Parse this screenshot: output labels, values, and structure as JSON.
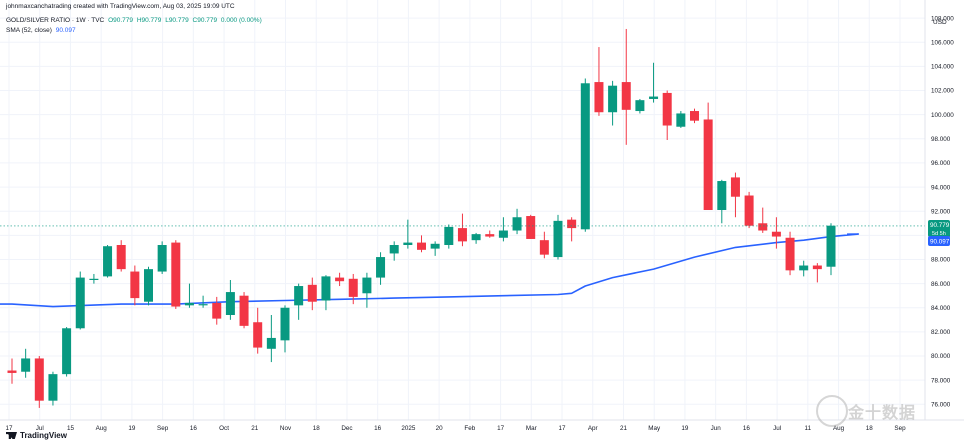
{
  "header": {
    "caption": "johnmaxcanchatrading created with TradingView.com, Aug 03, 2025 19:09 UTC",
    "symbol_line": "GOLD/SILVER RATIO · 1W · TVC",
    "ohlc": [
      "O90.779",
      "H90.779",
      "L90.779",
      "C90.779",
      "0.000 (0.00%)"
    ],
    "sma_label": "SMA (52, close)",
    "sma_value": "90.097"
  },
  "axis": {
    "currency": "USD",
    "price_tag": "90.779",
    "price_tag_sub": "5d 5h",
    "sma_tag": "90.097"
  },
  "brand": {
    "name": "TradingView"
  },
  "watermark": {
    "text": "金十数据"
  },
  "colors": {
    "up": "#089981",
    "down": "#f23645",
    "sma": "#2962ff",
    "grid": "#f0f3fa"
  },
  "chart_data": {
    "type": "candlestick",
    "title": "GOLD/SILVER RATIO",
    "interval": "1W",
    "ylabel": "USD",
    "ylim": [
      74.7,
      109.5
    ],
    "y_ticks": [
      "76.000",
      "78.000",
      "80.000",
      "82.000",
      "84.000",
      "86.000",
      "88.000",
      "90.000",
      "92.000",
      "94.000",
      "96.000",
      "98.000",
      "100.000",
      "102.000",
      "104.000",
      "106.000",
      "108.000"
    ],
    "x_ticks": [
      "17",
      "Jul",
      "15",
      "Aug",
      "19",
      "Sep",
      "16",
      "Oct",
      "21",
      "Nov",
      "18",
      "Dec",
      "16",
      "2025",
      "20",
      "Feb",
      "17",
      "Mar",
      "17",
      "Apr",
      "21",
      "May",
      "19",
      "Jun",
      "16",
      "Jul",
      "11",
      "Aug",
      "18",
      "Sep"
    ],
    "candles": [
      {
        "o": 78.8,
        "h": 79.8,
        "l": 77.7,
        "c": 78.6
      },
      {
        "o": 78.7,
        "h": 80.6,
        "l": 78.2,
        "c": 79.8
      },
      {
        "o": 79.8,
        "h": 80.0,
        "l": 75.7,
        "c": 76.3
      },
      {
        "o": 76.3,
        "h": 78.7,
        "l": 75.9,
        "c": 78.5
      },
      {
        "o": 78.5,
        "h": 82.4,
        "l": 78.3,
        "c": 82.3
      },
      {
        "o": 82.3,
        "h": 87.0,
        "l": 82.2,
        "c": 86.5
      },
      {
        "o": 86.3,
        "h": 86.8,
        "l": 86.0,
        "c": 86.4
      },
      {
        "o": 86.6,
        "h": 89.2,
        "l": 86.5,
        "c": 89.1
      },
      {
        "o": 89.2,
        "h": 89.6,
        "l": 87.0,
        "c": 87.2
      },
      {
        "o": 87.0,
        "h": 87.5,
        "l": 84.2,
        "c": 84.8
      },
      {
        "o": 84.5,
        "h": 87.4,
        "l": 84.2,
        "c": 87.2
      },
      {
        "o": 87.0,
        "h": 89.5,
        "l": 86.8,
        "c": 89.2
      },
      {
        "o": 89.4,
        "h": 89.6,
        "l": 83.9,
        "c": 84.1
      },
      {
        "o": 84.2,
        "h": 86.0,
        "l": 84.0,
        "c": 84.4
      },
      {
        "o": 84.2,
        "h": 85.0,
        "l": 84.0,
        "c": 84.3
      },
      {
        "o": 84.4,
        "h": 84.9,
        "l": 82.6,
        "c": 83.1
      },
      {
        "o": 83.4,
        "h": 86.3,
        "l": 83.0,
        "c": 85.3
      },
      {
        "o": 85.0,
        "h": 85.3,
        "l": 82.3,
        "c": 82.5
      },
      {
        "o": 82.8,
        "h": 84.0,
        "l": 80.2,
        "c": 80.7
      },
      {
        "o": 80.6,
        "h": 83.4,
        "l": 79.5,
        "c": 81.5
      },
      {
        "o": 81.3,
        "h": 84.2,
        "l": 80.3,
        "c": 84.0
      },
      {
        "o": 84.2,
        "h": 86.0,
        "l": 83.0,
        "c": 85.8
      },
      {
        "o": 85.9,
        "h": 86.5,
        "l": 83.8,
        "c": 84.5
      },
      {
        "o": 84.6,
        "h": 86.7,
        "l": 83.8,
        "c": 86.6
      },
      {
        "o": 86.5,
        "h": 86.9,
        "l": 85.8,
        "c": 86.2
      },
      {
        "o": 86.4,
        "h": 86.8,
        "l": 84.3,
        "c": 84.9
      },
      {
        "o": 85.2,
        "h": 86.9,
        "l": 84.0,
        "c": 86.5
      },
      {
        "o": 86.5,
        "h": 88.6,
        "l": 85.9,
        "c": 88.2
      },
      {
        "o": 88.5,
        "h": 89.5,
        "l": 87.9,
        "c": 89.2
      },
      {
        "o": 89.2,
        "h": 91.3,
        "l": 88.9,
        "c": 89.4
      },
      {
        "o": 89.4,
        "h": 90.0,
        "l": 88.6,
        "c": 88.8
      },
      {
        "o": 88.9,
        "h": 89.5,
        "l": 88.3,
        "c": 89.3
      },
      {
        "o": 89.2,
        "h": 90.9,
        "l": 88.9,
        "c": 90.7
      },
      {
        "o": 90.6,
        "h": 91.8,
        "l": 89.1,
        "c": 89.5
      },
      {
        "o": 89.6,
        "h": 90.2,
        "l": 89.3,
        "c": 90.1
      },
      {
        "o": 90.1,
        "h": 90.4,
        "l": 89.8,
        "c": 89.9
      },
      {
        "o": 89.8,
        "h": 91.5,
        "l": 89.5,
        "c": 90.4
      },
      {
        "o": 90.4,
        "h": 92.2,
        "l": 90.1,
        "c": 91.5
      },
      {
        "o": 91.6,
        "h": 91.7,
        "l": 89.7,
        "c": 89.7
      },
      {
        "o": 89.6,
        "h": 90.3,
        "l": 88.1,
        "c": 88.4
      },
      {
        "o": 88.2,
        "h": 91.7,
        "l": 88.0,
        "c": 91.2
      },
      {
        "o": 91.3,
        "h": 91.5,
        "l": 89.5,
        "c": 90.6
      },
      {
        "o": 90.5,
        "h": 103.0,
        "l": 90.3,
        "c": 102.6
      },
      {
        "o": 102.7,
        "h": 105.6,
        "l": 99.9,
        "c": 100.2
      },
      {
        "o": 100.2,
        "h": 102.8,
        "l": 99.1,
        "c": 102.4
      },
      {
        "o": 102.7,
        "h": 107.1,
        "l": 97.5,
        "c": 100.4
      },
      {
        "o": 100.3,
        "h": 101.3,
        "l": 100.1,
        "c": 101.2
      },
      {
        "o": 101.3,
        "h": 104.3,
        "l": 101.0,
        "c": 101.5
      },
      {
        "o": 101.8,
        "h": 102.0,
        "l": 97.9,
        "c": 99.1
      },
      {
        "o": 99.0,
        "h": 100.3,
        "l": 98.9,
        "c": 100.1
      },
      {
        "o": 100.3,
        "h": 100.5,
        "l": 99.3,
        "c": 99.5
      },
      {
        "o": 99.6,
        "h": 101.0,
        "l": 92.1,
        "c": 92.1
      },
      {
        "o": 92.1,
        "h": 94.6,
        "l": 91.0,
        "c": 94.5
      },
      {
        "o": 94.8,
        "h": 95.2,
        "l": 91.5,
        "c": 93.2
      },
      {
        "o": 93.3,
        "h": 93.6,
        "l": 90.6,
        "c": 90.8
      },
      {
        "o": 91.0,
        "h": 92.3,
        "l": 90.2,
        "c": 90.4
      },
      {
        "o": 90.3,
        "h": 91.5,
        "l": 88.9,
        "c": 89.9
      },
      {
        "o": 89.8,
        "h": 90.3,
        "l": 86.7,
        "c": 87.1
      },
      {
        "o": 87.1,
        "h": 87.9,
        "l": 86.6,
        "c": 87.5
      },
      {
        "o": 87.5,
        "h": 87.7,
        "l": 86.1,
        "c": 87.2
      },
      {
        "o": 87.4,
        "h": 91.0,
        "l": 86.7,
        "c": 90.8
      }
    ],
    "sma": [
      [
        0,
        84.3
      ],
      [
        3,
        84.1
      ],
      [
        8,
        84.3
      ],
      [
        12,
        84.3
      ],
      [
        16,
        84.5
      ],
      [
        20,
        84.6
      ],
      [
        24,
        84.7
      ],
      [
        28,
        84.8
      ],
      [
        32,
        84.9
      ],
      [
        36,
        85.0
      ],
      [
        40,
        85.1
      ],
      [
        41,
        85.2
      ],
      [
        42,
        85.8
      ],
      [
        44,
        86.5
      ],
      [
        47,
        87.2
      ],
      [
        50,
        88.2
      ],
      [
        53,
        89.0
      ],
      [
        56,
        89.4
      ],
      [
        58,
        89.6
      ],
      [
        60,
        89.9
      ],
      [
        62,
        90.1
      ]
    ],
    "last_price": 90.779,
    "sma_last": 90.097
  }
}
